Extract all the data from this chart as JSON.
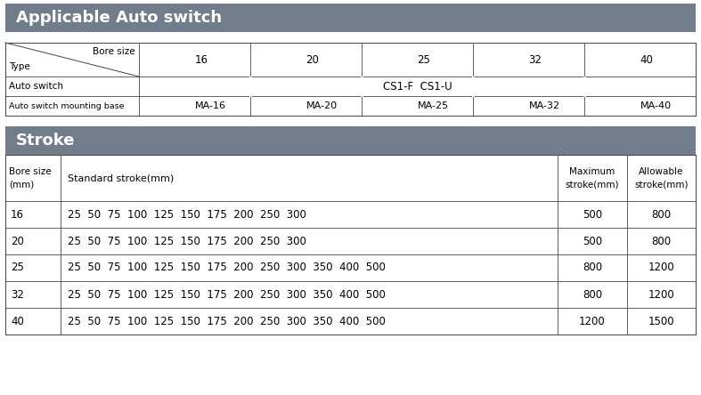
{
  "header_color": "#717d8a",
  "header_text_color": "#ffffff",
  "bg_color": "#ffffff",
  "border_color": "#444444",
  "section1_title": "Applicable Auto switch",
  "section2_title": "Stroke",
  "bore_sizes": [
    "16",
    "20",
    "25",
    "32",
    "40"
  ],
  "auto_switch_value": "CS1-F  CS1-U",
  "mounting_bases": [
    "MA-16",
    "MA-20",
    "MA-25",
    "MA-32",
    "MA-40"
  ],
  "stroke_rows": [
    [
      "16",
      "25  50  75  100  125  150  175  200  250  300",
      "500",
      "800"
    ],
    [
      "20",
      "25  50  75  100  125  150  175  200  250  300",
      "500",
      "800"
    ],
    [
      "25",
      "25  50  75  100  125  150  175  200  250  300  350  400  500",
      "800",
      "1200"
    ],
    [
      "32",
      "25  50  75  100  125  150  175  200  250  300  350  400  500",
      "800",
      "1200"
    ],
    [
      "40",
      "25  50  75  100  125  150  175  200  250  300  350  400  500",
      "1200",
      "1500"
    ]
  ],
  "fig_w": 7.87,
  "fig_h": 4.44,
  "dpi": 100
}
